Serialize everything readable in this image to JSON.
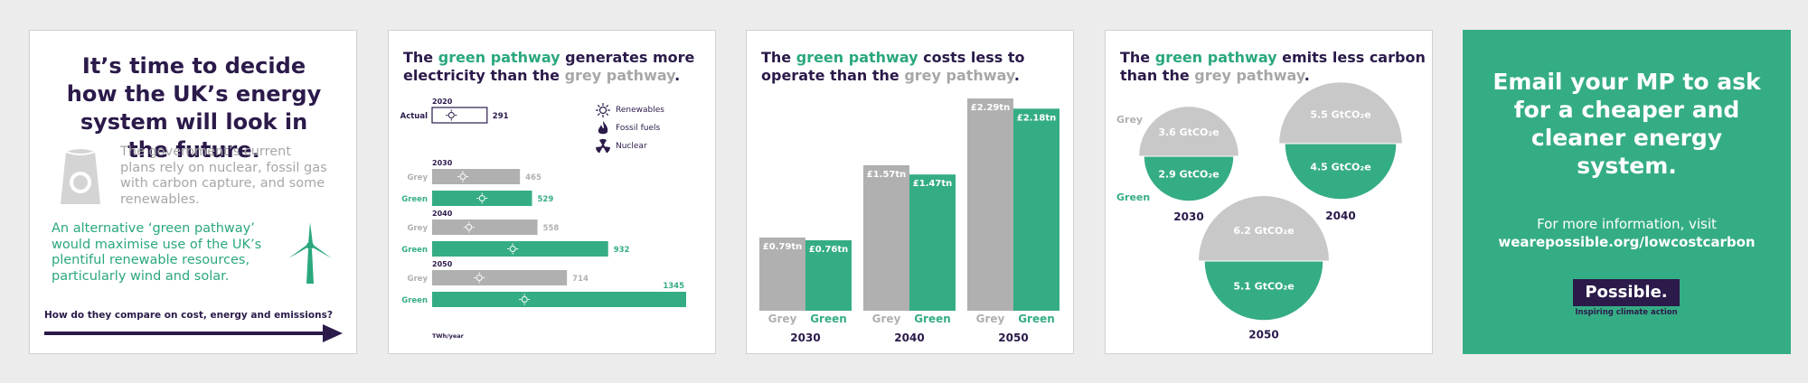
{
  "colors": {
    "purple": "#2b1a4a",
    "green": "#35ad84",
    "grey": "#b0b0b0",
    "light_grey": "#c8c8c8"
  },
  "panel1": {
    "title": "It’s time to decide how the UK’s energy system will look in the future.",
    "para_grey": "The government’s current plans rely on nuclear, fossil gas with carbon capture, and some renewables.",
    "para_green": "An alternative ‘green pathway’ would maximise use of the UK’s plentiful renewable resources, particularly wind and solar.",
    "footer": "How do they compare on cost, energy and emissions?",
    "icons": [
      "power-station-icon",
      "wind-turbine-icon",
      "arrow-right-icon"
    ]
  },
  "panel2": {
    "title_pre": "The ",
    "title_green": "green pathway",
    "title_mid": " generates more electricity than the ",
    "title_grey": "grey pathway",
    "title_post": ".",
    "legend": [
      {
        "label": "Renewables",
        "icon": "sun-icon"
      },
      {
        "label": "Fossil fuels",
        "icon": "flame-icon"
      },
      {
        "label": "Nuclear",
        "icon": "radiation-icon"
      }
    ]
  },
  "panel3": {
    "title_pre": "The ",
    "title_green": "green pathway",
    "title_mid": " costs less to operate than the ",
    "title_grey": "grey pathway",
    "title_post": "."
  },
  "panel4": {
    "title_pre": "The ",
    "title_green": "green pathway",
    "title_mid": " emits less carbon than the ",
    "title_grey": "grey pathway",
    "title_post": "."
  },
  "panel5": {
    "cta": "Email your MP to ask for a cheaper and cleaner energy system.",
    "info": "For more information, visit",
    "url": "wearepossible.org/lowcostcarbon",
    "logo": "Possible.",
    "tagline": "Inspiring climate action"
  },
  "chart_data": [
    {
      "type": "bar",
      "orientation": "horizontal",
      "unit_label": "TWh/year",
      "groups": [
        {
          "year": "2020",
          "rows": [
            {
              "label": "Actual",
              "value": 291
            }
          ]
        },
        {
          "year": "2030",
          "rows": [
            {
              "label": "Grey",
              "value": 465
            },
            {
              "label": "Green",
              "value": 529
            }
          ]
        },
        {
          "year": "2040",
          "rows": [
            {
              "label": "Grey",
              "value": 558
            },
            {
              "label": "Green",
              "value": 932
            }
          ]
        },
        {
          "year": "2050",
          "rows": [
            {
              "label": "Grey",
              "value": 714
            },
            {
              "label": "Green",
              "value": 1345
            }
          ]
        }
      ],
      "max": 1345
    },
    {
      "type": "bar",
      "categories": [
        "2030",
        "2040",
        "2050"
      ],
      "series": [
        {
          "name": "Grey",
          "values": [
            0.79,
            1.57,
            2.29
          ],
          "labels": [
            "£0.79tn",
            "£1.57tn",
            "£2.29tn"
          ]
        },
        {
          "name": "Green",
          "values": [
            0.76,
            1.47,
            2.18
          ],
          "labels": [
            "£0.76tn",
            "£1.47tn",
            "£2.18tn"
          ]
        }
      ],
      "ylim": [
        0,
        2.29
      ]
    },
    {
      "type": "pie",
      "unit": "GtCO₂e",
      "series_labels": {
        "grey": "Grey",
        "green": "Green"
      },
      "years": [
        {
          "year": "2030",
          "grey": 3.6,
          "green": 2.9,
          "grey_label": "3.6 GtCO₂e",
          "green_label": "2.9 GtCO₂e"
        },
        {
          "year": "2040",
          "grey": 5.5,
          "green": 4.5,
          "grey_label": "5.5 GtCO₂e",
          "green_label": "4.5 GtCO₂e"
        },
        {
          "year": "2050",
          "grey": 6.2,
          "green": 5.1,
          "grey_label": "6.2 GtCO₂e",
          "green_label": "5.1 GtCO₂e"
        }
      ]
    }
  ]
}
